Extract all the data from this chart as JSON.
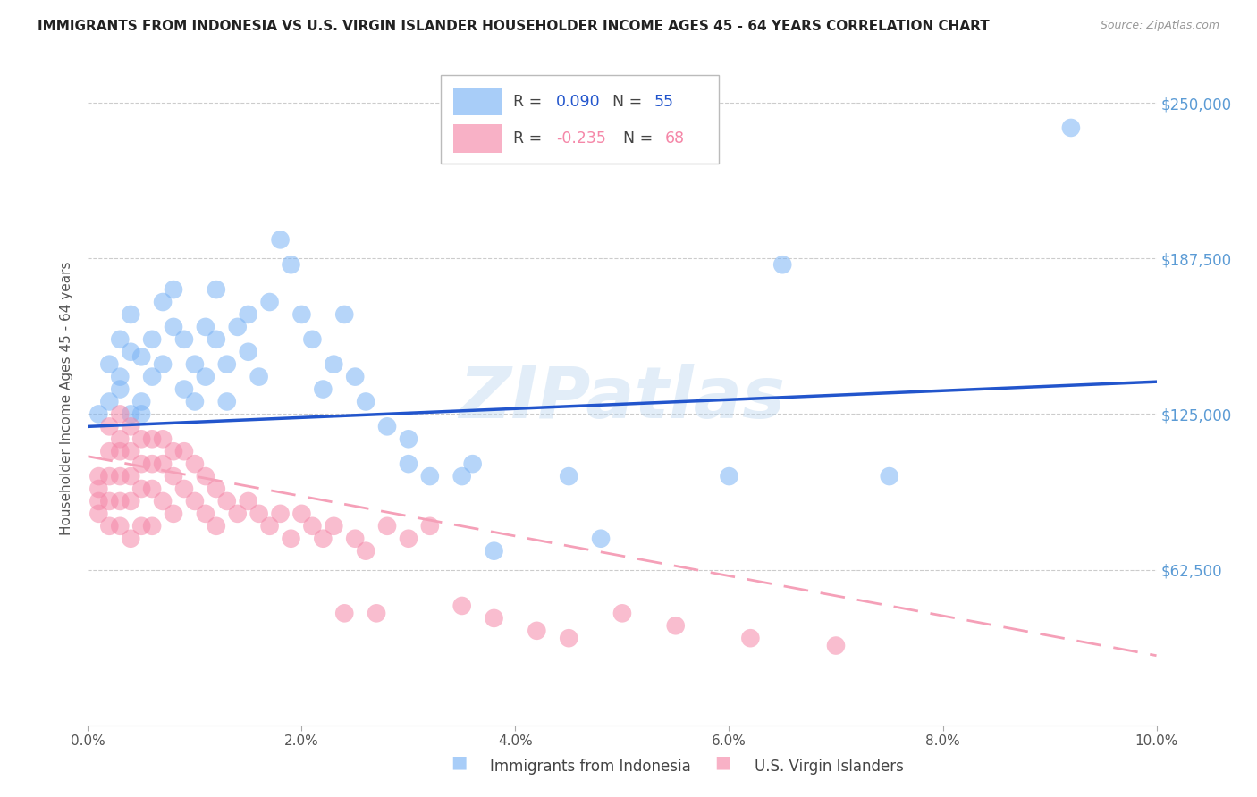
{
  "title": "IMMIGRANTS FROM INDONESIA VS U.S. VIRGIN ISLANDER HOUSEHOLDER INCOME AGES 45 - 64 YEARS CORRELATION CHART",
  "source": "Source: ZipAtlas.com",
  "xlabel_ticks": [
    "0.0%",
    "2.0%",
    "4.0%",
    "6.0%",
    "8.0%",
    "10.0%"
  ],
  "xlabel_vals": [
    0.0,
    0.02,
    0.04,
    0.06,
    0.08,
    0.1
  ],
  "ylabel": "Householder Income Ages 45 - 64 years",
  "right_ytick_labels": [
    "$62,500",
    "$125,000",
    "$187,500",
    "$250,000"
  ],
  "right_ytick_vals": [
    62500,
    125000,
    187500,
    250000
  ],
  "xlim": [
    0.0,
    0.1
  ],
  "ylim": [
    0,
    262500
  ],
  "watermark": "ZIPatlas",
  "blue_color": "#7ab3f5",
  "pink_color": "#f587a8",
  "blue_line_color": "#2255cc",
  "pink_line_color": "#f5a0b8",
  "bg_color": "#ffffff",
  "grid_color": "#cccccc",
  "right_label_color": "#5b9bd5",
  "blue_scatter_x": [
    0.001,
    0.002,
    0.002,
    0.003,
    0.003,
    0.003,
    0.004,
    0.004,
    0.004,
    0.005,
    0.005,
    0.005,
    0.006,
    0.006,
    0.007,
    0.007,
    0.008,
    0.008,
    0.009,
    0.009,
    0.01,
    0.01,
    0.011,
    0.011,
    0.012,
    0.012,
    0.013,
    0.013,
    0.014,
    0.015,
    0.015,
    0.016,
    0.017,
    0.018,
    0.019,
    0.02,
    0.021,
    0.022,
    0.023,
    0.024,
    0.025,
    0.026,
    0.028,
    0.03,
    0.03,
    0.032,
    0.035,
    0.036,
    0.038,
    0.045,
    0.048,
    0.06,
    0.065,
    0.075,
    0.092
  ],
  "blue_scatter_y": [
    125000,
    145000,
    130000,
    140000,
    155000,
    135000,
    125000,
    150000,
    165000,
    130000,
    125000,
    148000,
    155000,
    140000,
    170000,
    145000,
    175000,
    160000,
    135000,
    155000,
    130000,
    145000,
    160000,
    140000,
    175000,
    155000,
    145000,
    130000,
    160000,
    150000,
    165000,
    140000,
    170000,
    195000,
    185000,
    165000,
    155000,
    135000,
    145000,
    165000,
    140000,
    130000,
    120000,
    105000,
    115000,
    100000,
    100000,
    105000,
    70000,
    100000,
    75000,
    100000,
    185000,
    100000,
    240000
  ],
  "pink_scatter_x": [
    0.001,
    0.001,
    0.001,
    0.001,
    0.002,
    0.002,
    0.002,
    0.002,
    0.002,
    0.003,
    0.003,
    0.003,
    0.003,
    0.003,
    0.003,
    0.004,
    0.004,
    0.004,
    0.004,
    0.004,
    0.005,
    0.005,
    0.005,
    0.005,
    0.006,
    0.006,
    0.006,
    0.006,
    0.007,
    0.007,
    0.007,
    0.008,
    0.008,
    0.008,
    0.009,
    0.009,
    0.01,
    0.01,
    0.011,
    0.011,
    0.012,
    0.012,
    0.013,
    0.014,
    0.015,
    0.016,
    0.017,
    0.018,
    0.019,
    0.02,
    0.021,
    0.022,
    0.023,
    0.024,
    0.025,
    0.026,
    0.027,
    0.028,
    0.03,
    0.032,
    0.035,
    0.038,
    0.042,
    0.045,
    0.05,
    0.055,
    0.062,
    0.07
  ],
  "pink_scatter_y": [
    100000,
    95000,
    90000,
    85000,
    120000,
    110000,
    100000,
    90000,
    80000,
    125000,
    115000,
    110000,
    100000,
    90000,
    80000,
    120000,
    110000,
    100000,
    90000,
    75000,
    115000,
    105000,
    95000,
    80000,
    115000,
    105000,
    95000,
    80000,
    115000,
    105000,
    90000,
    110000,
    100000,
    85000,
    110000,
    95000,
    105000,
    90000,
    100000,
    85000,
    95000,
    80000,
    90000,
    85000,
    90000,
    85000,
    80000,
    85000,
    75000,
    85000,
    80000,
    75000,
    80000,
    45000,
    75000,
    70000,
    45000,
    80000,
    75000,
    80000,
    48000,
    43000,
    38000,
    35000,
    45000,
    40000,
    35000,
    32000
  ],
  "blue_line_x0": 0.0,
  "blue_line_x1": 0.1,
  "blue_line_y0": 120000,
  "blue_line_y1": 138000,
  "pink_line_x0": 0.0,
  "pink_line_x1": 0.1,
  "pink_line_y0": 108000,
  "pink_line_y1": 28000
}
